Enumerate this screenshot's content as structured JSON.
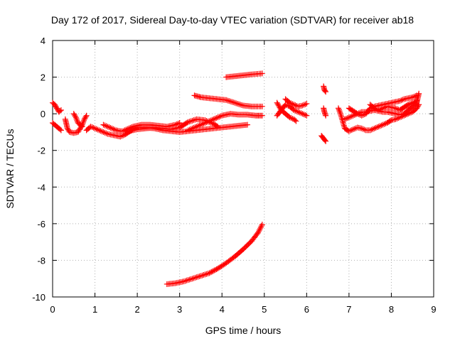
{
  "chart_data": {
    "type": "scatter",
    "title": "Day 172 of 2017, Sidereal Day-to-day VTEC variation (SDTVAR) for receiver ab18",
    "xlabel": "GPS time / hours",
    "ylabel": "SDTVAR / TECUs",
    "xlim": [
      0,
      9
    ],
    "ylim": [
      -10,
      4
    ],
    "xticks": [
      "0",
      "1",
      "2",
      "3",
      "4",
      "5",
      "6",
      "7",
      "8",
      "9"
    ],
    "yticks": [
      "-10",
      "-8",
      "-6",
      "-4",
      "-2",
      "0",
      "2",
      "4"
    ],
    "grid": true,
    "marker": "plus",
    "color": "#ff0000",
    "series": [
      {
        "segments": [
          [
            [
              0.0,
              0.6
            ],
            [
              0.05,
              0.5
            ],
            [
              0.1,
              0.3
            ],
            [
              0.15,
              0.1
            ],
            [
              0.2,
              0.2
            ]
          ],
          [
            [
              0.0,
              -0.5
            ],
            [
              0.05,
              -0.6
            ],
            [
              0.1,
              -0.7
            ],
            [
              0.15,
              -0.8
            ],
            [
              0.2,
              -0.9
            ]
          ],
          [
            [
              0.3,
              -0.3
            ],
            [
              0.35,
              -0.8
            ],
            [
              0.4,
              -1.0
            ],
            [
              0.5,
              -1.05
            ],
            [
              0.6,
              -1.0
            ],
            [
              0.65,
              -0.8
            ],
            [
              0.7,
              -0.6
            ],
            [
              0.75,
              -0.3
            ],
            [
              0.8,
              -0.1
            ]
          ],
          [
            [
              0.5,
              0.0
            ],
            [
              0.55,
              -0.2
            ],
            [
              0.6,
              -0.5
            ],
            [
              0.7,
              -0.7
            ]
          ],
          [
            [
              0.8,
              -0.9
            ],
            [
              0.9,
              -0.7
            ],
            [
              1.0,
              -0.8
            ],
            [
              1.1,
              -0.9
            ],
            [
              1.2,
              -1.0
            ],
            [
              1.3,
              -1.1
            ],
            [
              1.4,
              -1.15
            ],
            [
              1.5,
              -1.2
            ],
            [
              1.6,
              -1.25
            ],
            [
              1.7,
              -1.15
            ],
            [
              1.8,
              -1.0
            ],
            [
              1.9,
              -0.85
            ],
            [
              2.0,
              -0.75
            ],
            [
              2.2,
              -0.75
            ],
            [
              2.4,
              -0.8
            ],
            [
              2.6,
              -0.9
            ],
            [
              2.8,
              -0.95
            ],
            [
              3.0,
              -1.0
            ],
            [
              3.2,
              -0.95
            ],
            [
              3.4,
              -0.9
            ],
            [
              3.6,
              -0.85
            ],
            [
              3.8,
              -0.8
            ],
            [
              4.0,
              -0.75
            ],
            [
              4.2,
              -0.7
            ],
            [
              4.4,
              -0.65
            ],
            [
              4.6,
              -0.6
            ]
          ],
          [
            [
              1.2,
              -0.6
            ],
            [
              1.3,
              -0.7
            ],
            [
              1.4,
              -0.8
            ],
            [
              1.5,
              -0.9
            ],
            [
              1.6,
              -0.95
            ],
            [
              1.8,
              -0.95
            ],
            [
              2.0,
              -0.85
            ],
            [
              2.2,
              -0.8
            ],
            [
              2.4,
              -0.75
            ],
            [
              2.6,
              -0.8
            ],
            [
              2.8,
              -0.85
            ],
            [
              3.0,
              -0.75
            ],
            [
              3.1,
              -0.6
            ],
            [
              3.2,
              -0.45
            ],
            [
              3.4,
              -0.3
            ],
            [
              3.6,
              -0.35
            ],
            [
              3.8,
              -0.55
            ],
            [
              3.9,
              -0.7
            ]
          ],
          [
            [
              1.7,
              -0.9
            ],
            [
              1.9,
              -0.7
            ],
            [
              2.1,
              -0.6
            ],
            [
              2.3,
              -0.6
            ],
            [
              2.5,
              -0.65
            ],
            [
              2.7,
              -0.7
            ],
            [
              2.9,
              -0.6
            ],
            [
              3.0,
              -0.5
            ]
          ],
          [
            [
              3.2,
              -0.9
            ],
            [
              3.4,
              -0.7
            ],
            [
              3.6,
              -0.5
            ],
            [
              3.8,
              -0.3
            ],
            [
              4.0,
              -0.1
            ],
            [
              4.2,
              0.0
            ],
            [
              4.4,
              -0.05
            ],
            [
              4.6,
              -0.05
            ],
            [
              4.8,
              -0.1
            ],
            [
              4.95,
              -0.1
            ]
          ],
          [
            [
              3.35,
              1.0
            ],
            [
              3.5,
              0.9
            ],
            [
              3.7,
              0.85
            ],
            [
              3.9,
              0.8
            ],
            [
              4.1,
              0.75
            ],
            [
              4.3,
              0.6
            ],
            [
              4.5,
              0.45
            ],
            [
              4.7,
              0.4
            ],
            [
              4.95,
              0.4
            ]
          ],
          [
            [
              4.1,
              2.0
            ],
            [
              4.3,
              2.05
            ],
            [
              4.5,
              2.1
            ],
            [
              4.7,
              2.15
            ],
            [
              4.95,
              2.2
            ]
          ],
          [
            [
              2.7,
              -9.3
            ],
            [
              2.9,
              -9.25
            ],
            [
              3.1,
              -9.15
            ],
            [
              3.3,
              -9.0
            ],
            [
              3.5,
              -8.85
            ],
            [
              3.7,
              -8.7
            ],
            [
              3.9,
              -8.45
            ],
            [
              4.1,
              -8.15
            ],
            [
              4.3,
              -7.8
            ],
            [
              4.5,
              -7.4
            ],
            [
              4.7,
              -6.95
            ],
            [
              4.85,
              -6.5
            ],
            [
              4.95,
              -6.05
            ]
          ],
          [
            [
              5.3,
              0.6
            ],
            [
              5.35,
              0.4
            ],
            [
              5.4,
              0.2
            ],
            [
              5.5,
              0.0
            ],
            [
              5.6,
              -0.2
            ],
            [
              5.7,
              -0.3
            ],
            [
              5.75,
              -0.4
            ]
          ],
          [
            [
              5.3,
              -0.1
            ],
            [
              5.4,
              0.2
            ],
            [
              5.5,
              0.5
            ],
            [
              5.6,
              0.4
            ],
            [
              5.7,
              0.2
            ],
            [
              5.8,
              0.1
            ],
            [
              5.9,
              0.0
            ],
            [
              6.0,
              -0.1
            ]
          ],
          [
            [
              5.5,
              0.8
            ],
            [
              5.6,
              0.6
            ],
            [
              5.7,
              0.5
            ],
            [
              5.8,
              0.4
            ],
            [
              5.9,
              0.45
            ],
            [
              6.0,
              0.55
            ]
          ],
          [
            [
              6.4,
              1.5
            ],
            [
              6.42,
              1.3
            ],
            [
              6.45,
              1.2
            ]
          ],
          [
            [
              6.4,
              0.3
            ],
            [
              6.42,
              0.1
            ],
            [
              6.45,
              -0.1
            ]
          ],
          [
            [
              6.35,
              -1.2
            ],
            [
              6.4,
              -1.35
            ],
            [
              6.45,
              -1.5
            ]
          ],
          [
            [
              6.75,
              0.3
            ],
            [
              6.8,
              0.0
            ],
            [
              6.85,
              -0.4
            ],
            [
              6.9,
              -0.8
            ],
            [
              7.0,
              -0.95
            ],
            [
              7.1,
              -0.85
            ],
            [
              7.2,
              -0.75
            ],
            [
              7.3,
              -0.8
            ],
            [
              7.4,
              -0.9
            ],
            [
              7.5,
              -0.9
            ],
            [
              7.6,
              -0.8
            ],
            [
              7.7,
              -0.7
            ],
            [
              7.8,
              -0.6
            ],
            [
              7.9,
              -0.5
            ],
            [
              8.0,
              -0.35
            ],
            [
              8.1,
              -0.3
            ],
            [
              8.2,
              -0.2
            ],
            [
              8.3,
              -0.1
            ],
            [
              8.4,
              0.0
            ],
            [
              8.5,
              0.1
            ],
            [
              8.6,
              0.3
            ],
            [
              8.65,
              0.5
            ]
          ],
          [
            [
              6.9,
              -0.3
            ],
            [
              7.0,
              -0.2
            ],
            [
              7.1,
              -0.1
            ],
            [
              7.2,
              0.0
            ],
            [
              7.3,
              0.1
            ],
            [
              7.4,
              0.1
            ],
            [
              7.5,
              0.15
            ],
            [
              7.6,
              0.2
            ],
            [
              7.7,
              0.15
            ],
            [
              7.8,
              0.1
            ],
            [
              7.9,
              0.1
            ],
            [
              8.0,
              0.05
            ],
            [
              8.1,
              0.0
            ],
            [
              8.2,
              -0.05
            ],
            [
              8.3,
              0.0
            ],
            [
              8.4,
              0.2
            ],
            [
              8.5,
              0.4
            ],
            [
              8.6,
              0.6
            ],
            [
              8.65,
              1.1
            ]
          ],
          [
            [
              7.0,
              0.3
            ],
            [
              7.1,
              0.15
            ],
            [
              7.2,
              0.0
            ],
            [
              7.3,
              -0.1
            ],
            [
              7.4,
              0.0
            ],
            [
              7.5,
              0.3
            ],
            [
              7.6,
              0.4
            ],
            [
              7.7,
              0.45
            ],
            [
              7.8,
              0.5
            ],
            [
              7.9,
              0.55
            ],
            [
              8.0,
              0.6
            ],
            [
              8.1,
              0.65
            ],
            [
              8.2,
              0.7
            ],
            [
              8.3,
              0.8
            ],
            [
              8.4,
              0.85
            ],
            [
              8.5,
              0.9
            ],
            [
              8.6,
              1.0
            ]
          ],
          [
            [
              7.5,
              0.5
            ],
            [
              7.6,
              0.3
            ],
            [
              7.7,
              0.2
            ],
            [
              7.8,
              0.3
            ],
            [
              7.9,
              0.4
            ],
            [
              8.0,
              0.35
            ],
            [
              8.1,
              0.3
            ],
            [
              8.2,
              0.2
            ],
            [
              8.3,
              0.35
            ],
            [
              8.4,
              0.5
            ],
            [
              8.5,
              0.6
            ],
            [
              8.6,
              0.7
            ]
          ]
        ]
      }
    ]
  }
}
